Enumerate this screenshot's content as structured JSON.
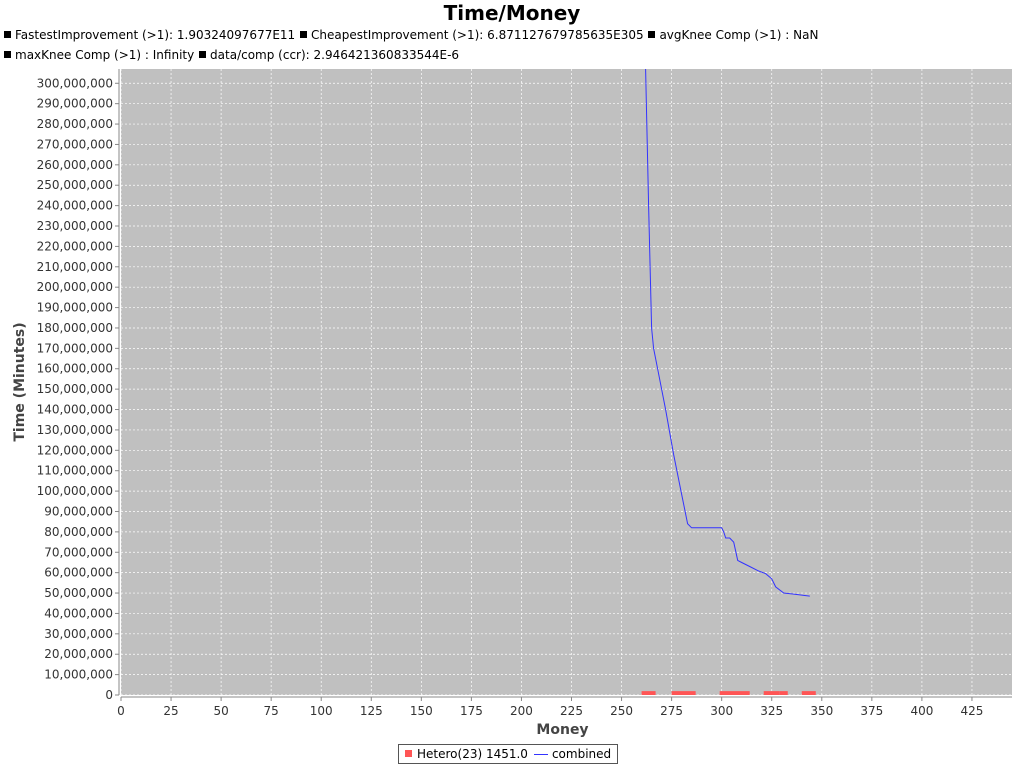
{
  "title": "Time/Money",
  "subtitles": [
    [
      {
        "text": "FastestImprovement (>1): 1.90324097677E11"
      },
      {
        "text": "CheapestImprovement (>1): 6.871127679785635E305"
      },
      {
        "text": "avgKnee Comp (>1) : NaN"
      }
    ],
    [
      {
        "text": "maxKnee Comp (>1) : Infinity"
      },
      {
        "text": "data/comp (ccr): 2.946421360833544E-6"
      }
    ]
  ],
  "legend": {
    "bars_label": "Hetero(23) 1451.0",
    "line_label": "combined"
  },
  "colors": {
    "plot_background": "#c0c0c0",
    "line": "#3333ff",
    "bars": "#ff5555",
    "grid": "#ffffff"
  },
  "chart_data": {
    "type": "line",
    "title": "Time/Money",
    "xlabel": "Money",
    "ylabel": "Time (Minutes)",
    "xlim": [
      0,
      445
    ],
    "ylim": [
      0,
      307000000
    ],
    "x_ticks": [
      0,
      25,
      50,
      75,
      100,
      125,
      150,
      175,
      200,
      225,
      250,
      275,
      300,
      325,
      350,
      375,
      400,
      425
    ],
    "x_tick_labels": [
      "0",
      "25",
      "50",
      "75",
      "100",
      "125",
      "150",
      "175",
      "200",
      "225",
      "250",
      "275",
      "300",
      "325",
      "350",
      "375",
      "400",
      "425"
    ],
    "y_ticks": [
      0,
      10000000,
      20000000,
      30000000,
      40000000,
      50000000,
      60000000,
      70000000,
      80000000,
      90000000,
      100000000,
      110000000,
      120000000,
      130000000,
      140000000,
      150000000,
      160000000,
      170000000,
      180000000,
      190000000,
      200000000,
      210000000,
      220000000,
      230000000,
      240000000,
      250000000,
      260000000,
      270000000,
      280000000,
      290000000,
      300000000
    ],
    "y_tick_labels": [
      "0",
      "10,000,000",
      "20,000,000",
      "30,000,000",
      "40,000,000",
      "50,000,000",
      "60,000,000",
      "70,000,000",
      "80,000,000",
      "90,000,000",
      "100,000,000",
      "110,000,000",
      "120,000,000",
      "130,000,000",
      "140,000,000",
      "150,000,000",
      "160,000,000",
      "170,000,000",
      "180,000,000",
      "190,000,000",
      "200,000,000",
      "210,000,000",
      "220,000,000",
      "230,000,000",
      "240,000,000",
      "250,000,000",
      "260,000,000",
      "270,000,000",
      "280,000,000",
      "290,000,000",
      "300,000,000"
    ],
    "grid": true,
    "legend_position": "bottom",
    "series": [
      {
        "name": "combined",
        "type": "line",
        "x": [
          262,
          263.5,
          264,
          264.5,
          265,
          266,
          268,
          272,
          276,
          280,
          283,
          285,
          290,
          295,
          300,
          301,
          302,
          304,
          306,
          308,
          310,
          314,
          318,
          322,
          325,
          327,
          331,
          336,
          340,
          344
        ],
        "y": [
          307000000,
          240000000,
          220000000,
          200000000,
          180000000,
          170000000,
          160000000,
          140000000,
          118000000,
          98500000,
          84000000,
          82000000,
          82000000,
          82000000,
          82000000,
          80000000,
          77000000,
          77000000,
          75000000,
          66000000,
          65000000,
          63000000,
          61000000,
          59500000,
          57000000,
          53000000,
          50000000,
          49500000,
          49000000,
          48500000
        ]
      },
      {
        "name": "Hetero(23) 1451.0",
        "type": "bar",
        "bars": [
          {
            "x0": 260,
            "x1": 267,
            "height": 1900000
          },
          {
            "x0": 275,
            "x1": 287,
            "height": 1900000
          },
          {
            "x0": 299,
            "x1": 314,
            "height": 1900000
          },
          {
            "x0": 321,
            "x1": 329,
            "height": 1900000
          },
          {
            "x0": 329,
            "x1": 333,
            "height": 1900000
          },
          {
            "x0": 340,
            "x1": 347,
            "height": 1900000
          }
        ]
      }
    ]
  }
}
